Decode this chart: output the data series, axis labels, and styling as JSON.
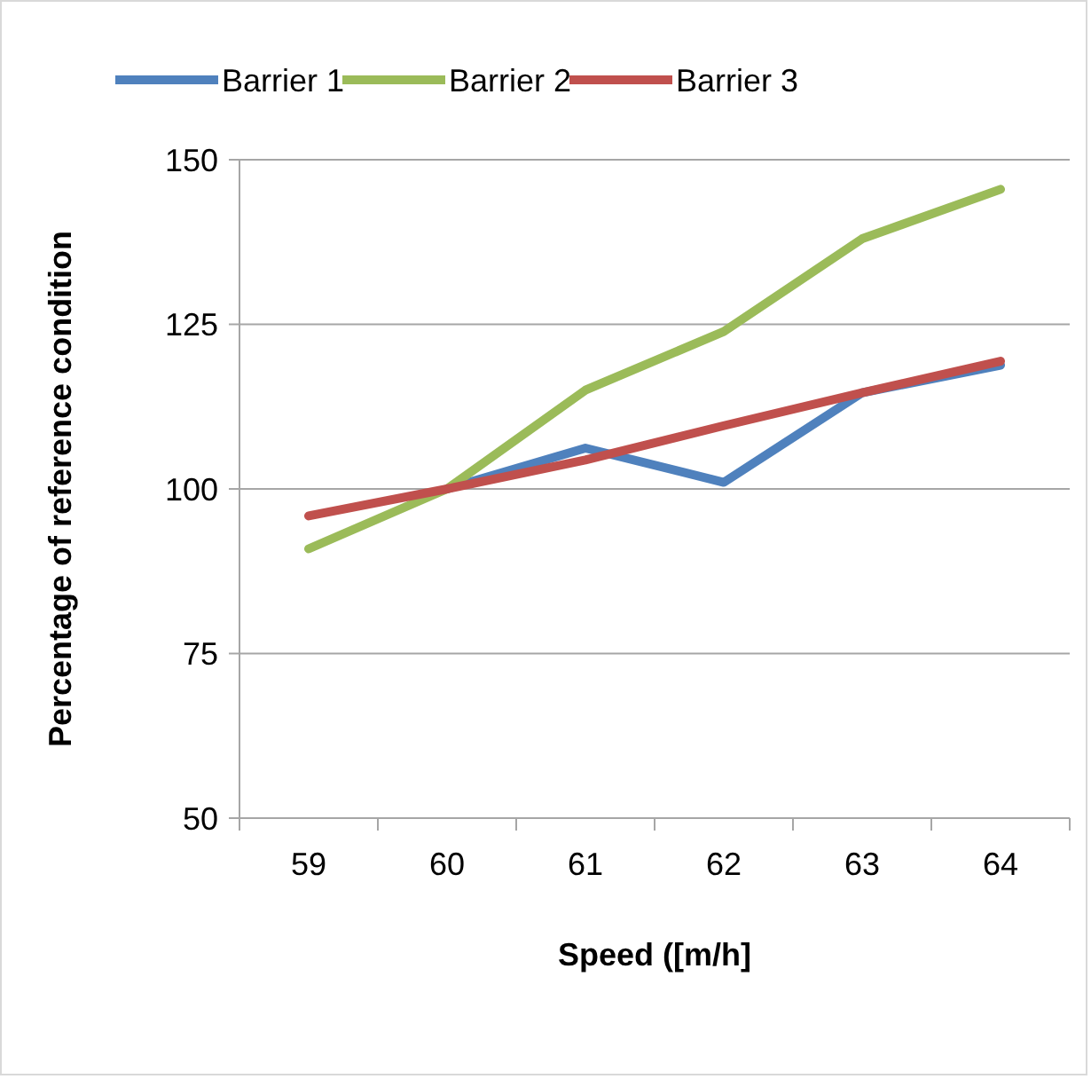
{
  "chart_data": {
    "type": "line",
    "xlabel": "Speed ([m/h]",
    "ylabel": "Percentage of reference condition",
    "categories": [
      "59",
      "60",
      "61",
      "62",
      "63",
      "64"
    ],
    "series": [
      {
        "name": "Barrier 1",
        "color": "#4f81bd",
        "values": [
          null,
          100,
          106.2,
          101,
          114.6,
          118.8
        ]
      },
      {
        "name": "Barrier 2",
        "color": "#9bbb59",
        "values": [
          90.9,
          100,
          115,
          123.9,
          138,
          145.5
        ]
      },
      {
        "name": "Barrier 3",
        "color": "#c0504d",
        "values": [
          95.9,
          100,
          104.4,
          109.6,
          114.6,
          119.4
        ]
      }
    ],
    "ylim": [
      50,
      150
    ],
    "yticks": [
      50,
      75,
      100,
      125,
      150
    ],
    "grid": "y",
    "legend": "top",
    "marker": "none",
    "line_style": "solid"
  }
}
